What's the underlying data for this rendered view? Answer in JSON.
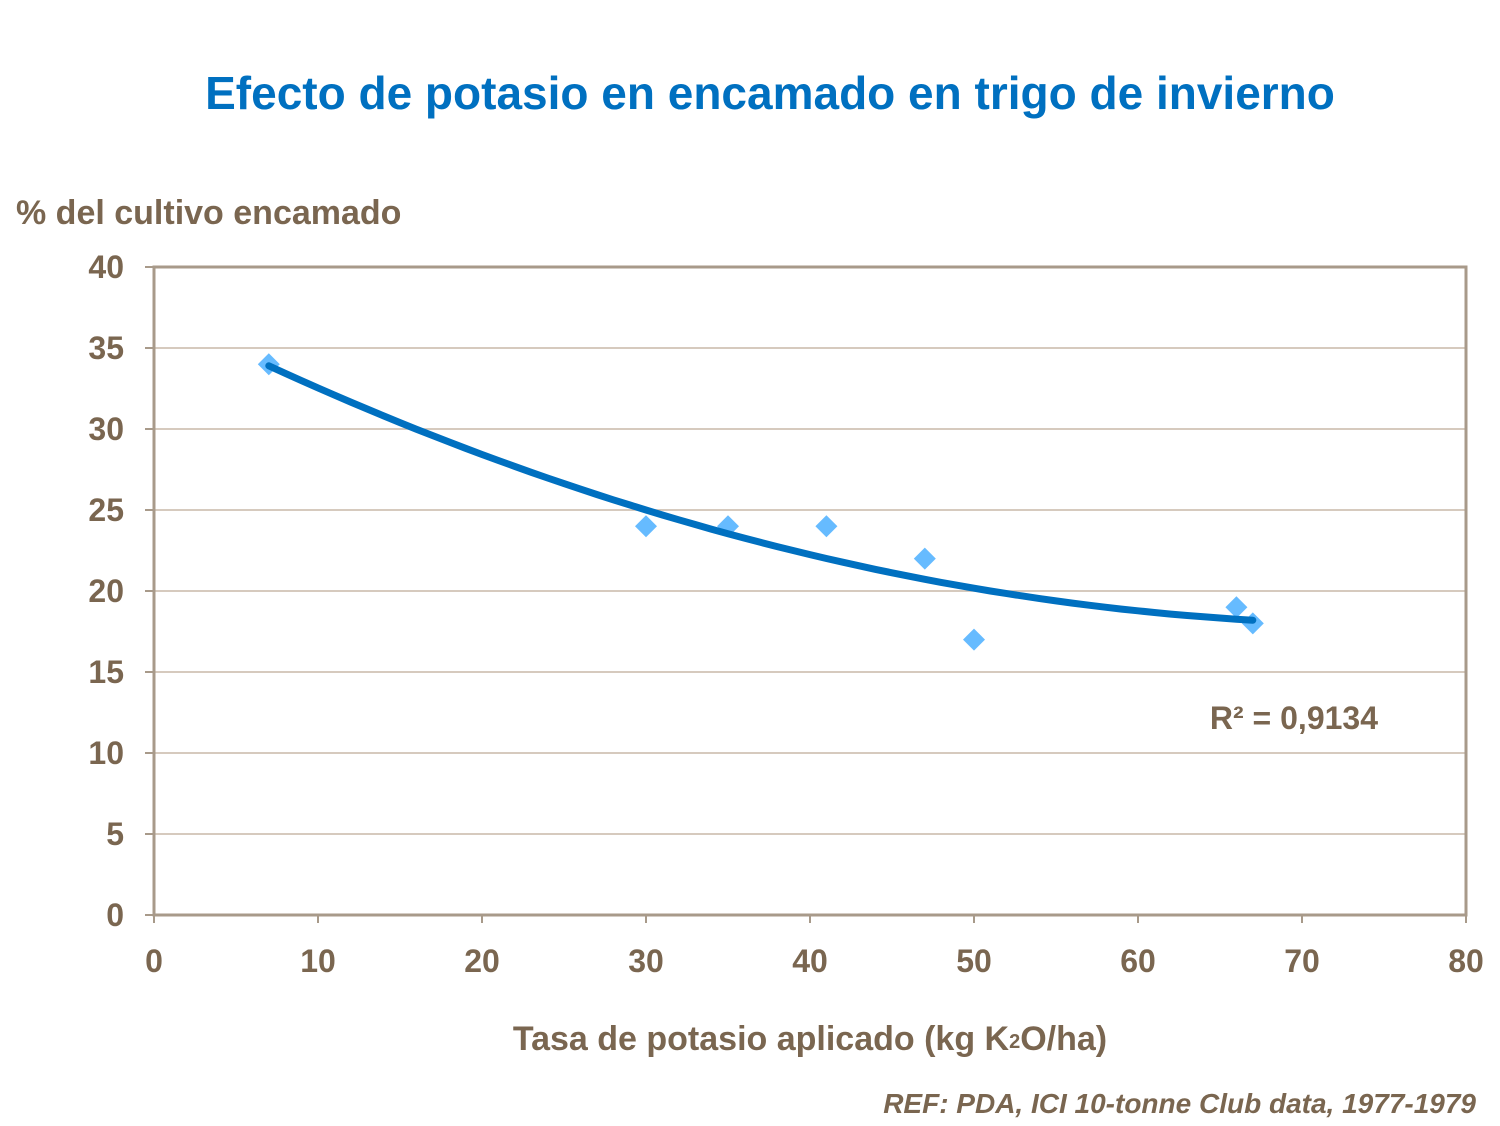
{
  "chart_data": {
    "type": "scatter",
    "title": "Efecto de potasio en encamado en trigo de invierno",
    "ylabel": "% del cultivo encamado",
    "xlabel_parts": {
      "before": "Tasa de potasio aplicado (kg K",
      "sub": "2",
      "after": "O/ha)"
    },
    "xlim": [
      0,
      80
    ],
    "ylim": [
      0,
      40
    ],
    "xticks": [
      0,
      10,
      20,
      30,
      40,
      50,
      60,
      70,
      80
    ],
    "yticks": [
      0,
      5,
      10,
      15,
      20,
      25,
      30,
      35,
      40
    ],
    "grid": "horizontal",
    "points": [
      {
        "x": 7,
        "y": 34
      },
      {
        "x": 30,
        "y": 24
      },
      {
        "x": 35,
        "y": 24
      },
      {
        "x": 41,
        "y": 24
      },
      {
        "x": 47,
        "y": 22
      },
      {
        "x": 50,
        "y": 17
      },
      {
        "x": 66,
        "y": 19
      },
      {
        "x": 67,
        "y": 18
      }
    ],
    "trendline": {
      "type": "polynomial",
      "r2_label": "R² = 0,9134"
    },
    "colors": {
      "marker": "#66bbff",
      "trendline": "#0070c0",
      "title": "#0070c0",
      "text": "#7a6650",
      "grid": "#c8b8a8",
      "axis": "#a89a8a"
    },
    "reference": "REF: PDA, ICI 10-tonne Club data, 1977-1979"
  }
}
